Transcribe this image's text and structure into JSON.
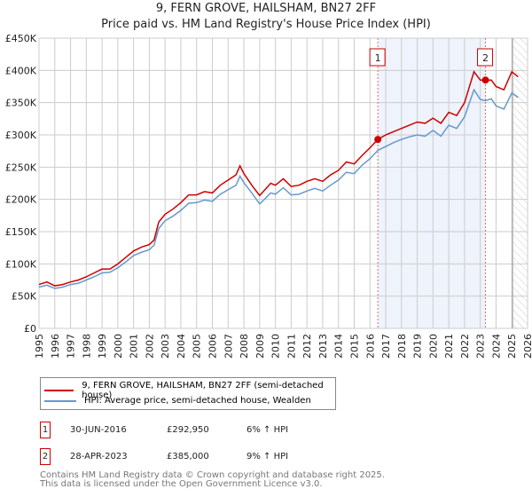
{
  "title": "9, FERN GROVE, HAILSHAM, BN27 2FF",
  "subtitle": "Price paid vs. HM Land Registry's House Price Index (HPI)",
  "chart_data": {
    "type": "line",
    "title": "9, FERN GROVE, HAILSHAM, BN27 2FF — Price paid vs. HM Land Registry's House Price Index (HPI)",
    "xlim": [
      1995,
      2026
    ],
    "ylim": [
      0,
      450000
    ],
    "x_ticks": [
      "1995",
      "1996",
      "1997",
      "1998",
      "1999",
      "2000",
      "2001",
      "2002",
      "2003",
      "2004",
      "2005",
      "2006",
      "2007",
      "2008",
      "2009",
      "2010",
      "2011",
      "2012",
      "2013",
      "2014",
      "2015",
      "2016",
      "2017",
      "2018",
      "2019",
      "2020",
      "2021",
      "2022",
      "2023",
      "2024",
      "2025",
      "2026"
    ],
    "y_ticks": [
      {
        "v": 0,
        "label": "£0"
      },
      {
        "v": 50000,
        "label": "£50K"
      },
      {
        "v": 100000,
        "label": "£100K"
      },
      {
        "v": 150000,
        "label": "£150K"
      },
      {
        "v": 200000,
        "label": "£200K"
      },
      {
        "v": 250000,
        "label": "£250K"
      },
      {
        "v": 300000,
        "label": "£300K"
      },
      {
        "v": 350000,
        "label": "£350K"
      },
      {
        "v": 400000,
        "label": "£400K"
      },
      {
        "v": 450000,
        "label": "£450K"
      }
    ],
    "grid": true,
    "series": [
      {
        "name": "9, FERN GROVE, HAILSHAM, BN27 2FF (semi-detached house)",
        "color": "#cc0000",
        "x": [
          1995,
          1995.5,
          1996,
          1996.5,
          1997,
          1997.5,
          1998,
          1998.5,
          1999,
          1999.5,
          2000,
          2000.5,
          2001,
          2001.5,
          2002,
          2002.3,
          2002.6,
          2003,
          2003.5,
          2004,
          2004.5,
          2005,
          2005.5,
          2006,
          2006.5,
          2007,
          2007.5,
          2007.75,
          2008,
          2008.5,
          2009,
          2009.3,
          2009.7,
          2010,
          2010.5,
          2011,
          2011.5,
          2012,
          2012.5,
          2013,
          2013.5,
          2014,
          2014.5,
          2015,
          2015.5,
          2016,
          2016.5,
          2017,
          2017.5,
          2018,
          2018.5,
          2019,
          2019.5,
          2020,
          2020.5,
          2021,
          2021.5,
          2022,
          2022.6,
          2023,
          2023.33,
          2023.7,
          2024,
          2024.5,
          2025,
          2025.4
        ],
        "y": [
          68000,
          72000,
          66000,
          68000,
          72000,
          75000,
          80000,
          86000,
          92000,
          92000,
          100000,
          110000,
          120000,
          126000,
          130000,
          137000,
          165000,
          177000,
          185000,
          195000,
          207000,
          207000,
          212000,
          210000,
          222000,
          230000,
          238000,
          252000,
          240000,
          222000,
          206000,
          214000,
          225000,
          222000,
          232000,
          220000,
          222000,
          228000,
          232000,
          228000,
          238000,
          245000,
          258000,
          255000,
          268000,
          280000,
          293000,
          300000,
          305000,
          310000,
          315000,
          320000,
          318000,
          326000,
          318000,
          335000,
          330000,
          350000,
          398000,
          385000,
          385000,
          385000,
          375000,
          370000,
          398000,
          390000
        ]
      },
      {
        "name": "HPI: Average price, semi-detached house, Wealden",
        "color": "#6699cc",
        "x": [
          1995,
          1995.5,
          1996,
          1996.5,
          1997,
          1997.5,
          1998,
          1998.5,
          1999,
          1999.5,
          2000,
          2000.5,
          2001,
          2001.5,
          2002,
          2002.3,
          2002.6,
          2003,
          2003.5,
          2004,
          2004.5,
          2005,
          2005.5,
          2006,
          2006.5,
          2007,
          2007.5,
          2007.75,
          2008,
          2008.5,
          2009,
          2009.3,
          2009.7,
          2010,
          2010.5,
          2011,
          2011.5,
          2012,
          2012.5,
          2013,
          2013.5,
          2014,
          2014.5,
          2015,
          2015.5,
          2016,
          2016.5,
          2017,
          2017.5,
          2018,
          2018.5,
          2019,
          2019.5,
          2020,
          2020.5,
          2021,
          2021.5,
          2022,
          2022.6,
          2023,
          2023.33,
          2023.7,
          2024,
          2024.5,
          2025,
          2025.4
        ],
        "y": [
          64000,
          67000,
          62000,
          64000,
          68000,
          70000,
          75000,
          80000,
          86000,
          87000,
          94000,
          103000,
          113000,
          118000,
          122000,
          129000,
          155000,
          167000,
          174000,
          183000,
          194000,
          195000,
          199000,
          197000,
          208000,
          215000,
          222000,
          236000,
          226000,
          210000,
          193000,
          200000,
          210000,
          208000,
          218000,
          207000,
          208000,
          213000,
          217000,
          213000,
          222000,
          230000,
          242000,
          240000,
          253000,
          263000,
          276000,
          282000,
          288000,
          293000,
          297000,
          300000,
          298000,
          307000,
          298000,
          315000,
          310000,
          328000,
          370000,
          355000,
          353000,
          356000,
          345000,
          340000,
          365000,
          358000
        ]
      }
    ],
    "annotations": [
      {
        "label": "1",
        "x": 2016.5,
        "y": 292950
      },
      {
        "label": "2",
        "x": 2023.33,
        "y": 385000
      }
    ],
    "shaded_range": [
      2016.5,
      2023.33
    ],
    "hatched_from": 2025.05
  },
  "legend": {
    "items": [
      {
        "label": "9, FERN GROVE, HAILSHAM, BN27 2FF (semi-detached house)",
        "color": "#cc0000"
      },
      {
        "label": "HPI: Average price, semi-detached house, Wealden",
        "color": "#6699cc"
      }
    ]
  },
  "transactions": [
    {
      "num": "1",
      "date": "30-JUN-2016",
      "price": "£292,950",
      "hpi": "6% ↑ HPI"
    },
    {
      "num": "2",
      "date": "28-APR-2023",
      "price": "£385,000",
      "hpi": "9% ↑ HPI"
    }
  ],
  "footer": {
    "line1": "Contains HM Land Registry data © Crown copyright and database right 2025.",
    "line2": "This data is licensed under the Open Government Licence v3.0."
  }
}
